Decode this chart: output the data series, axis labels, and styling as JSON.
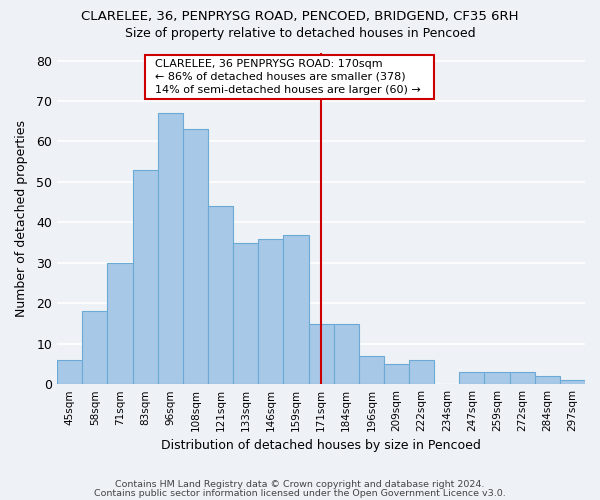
{
  "title_line1": "CLARELEE, 36, PENPRYSG ROAD, PENCOED, BRIDGEND, CF35 6RH",
  "title_line2": "Size of property relative to detached houses in Pencoed",
  "xlabel": "Distribution of detached houses by size in Pencoed",
  "ylabel": "Number of detached properties",
  "categories": [
    "45sqm",
    "58sqm",
    "71sqm",
    "83sqm",
    "96sqm",
    "108sqm",
    "121sqm",
    "133sqm",
    "146sqm",
    "159sqm",
    "171sqm",
    "184sqm",
    "196sqm",
    "209sqm",
    "222sqm",
    "234sqm",
    "247sqm",
    "259sqm",
    "272sqm",
    "284sqm",
    "297sqm"
  ],
  "values": [
    6,
    18,
    30,
    53,
    67,
    63,
    44,
    35,
    36,
    37,
    15,
    15,
    7,
    5,
    6,
    0,
    3,
    3,
    3,
    2,
    1
  ],
  "bar_color": "#a8c8e8",
  "bar_edge_color": "#6aaad4",
  "vline_x": 10,
  "vline_color": "#cc0000",
  "annotation_title": "CLARELEE, 36 PENPRYSG ROAD: 170sqm",
  "annotation_line2": "← 86% of detached houses are smaller (378)",
  "annotation_line3": "14% of semi-detached houses are larger (60) →",
  "ylim": [
    0,
    82
  ],
  "yticks": [
    0,
    10,
    20,
    30,
    40,
    50,
    60,
    70,
    80
  ],
  "background_color": "#eef2f7",
  "grid_color": "#ffffff",
  "footer_line1": "Contains HM Land Registry data © Crown copyright and database right 2024.",
  "footer_line2": "Contains public sector information licensed under the Open Government Licence v3.0."
}
